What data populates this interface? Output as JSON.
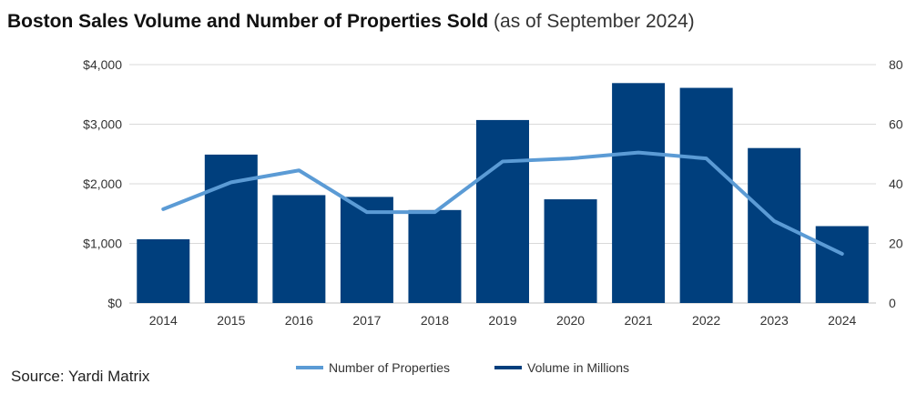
{
  "header": {
    "title_main": "Boston Sales Volume and Number of Properties Sold",
    "title_sub": "(as of September 2024)"
  },
  "source": "Source: Yardi Matrix",
  "colors": {
    "bar": "#003f7d",
    "line": "#5b9bd5",
    "grid": "#d9d9d9",
    "axis_text": "#333333"
  },
  "chart_data": {
    "type": "bar",
    "categories": [
      "2014",
      "2015",
      "2016",
      "2017",
      "2018",
      "2019",
      "2020",
      "2021",
      "2022",
      "2023",
      "2024"
    ],
    "series": [
      {
        "name": "Volume in Millions",
        "type": "bar",
        "axis": "left",
        "values": [
          1070,
          2490,
          1810,
          1780,
          1560,
          3070,
          1740,
          3690,
          3610,
          2600,
          1290
        ]
      },
      {
        "name": "Number of Properties",
        "type": "line",
        "axis": "right",
        "values": [
          31.5,
          40.5,
          44.5,
          30.5,
          30.5,
          47.5,
          48.5,
          50.5,
          48.5,
          27.5,
          16.5
        ]
      }
    ],
    "y_left": {
      "ylim": [
        0,
        4000
      ],
      "ticks": [
        "$0",
        "$1,000",
        "$2,000",
        "$3,000",
        "$4,000"
      ]
    },
    "y_right": {
      "ylim": [
        0,
        80
      ],
      "ticks": [
        "0",
        "20",
        "40",
        "60",
        "80"
      ]
    },
    "legend": {
      "position": "bottom",
      "line_label": "Number of Properties",
      "bar_label": "Volume in Millions"
    },
    "grid": true
  }
}
